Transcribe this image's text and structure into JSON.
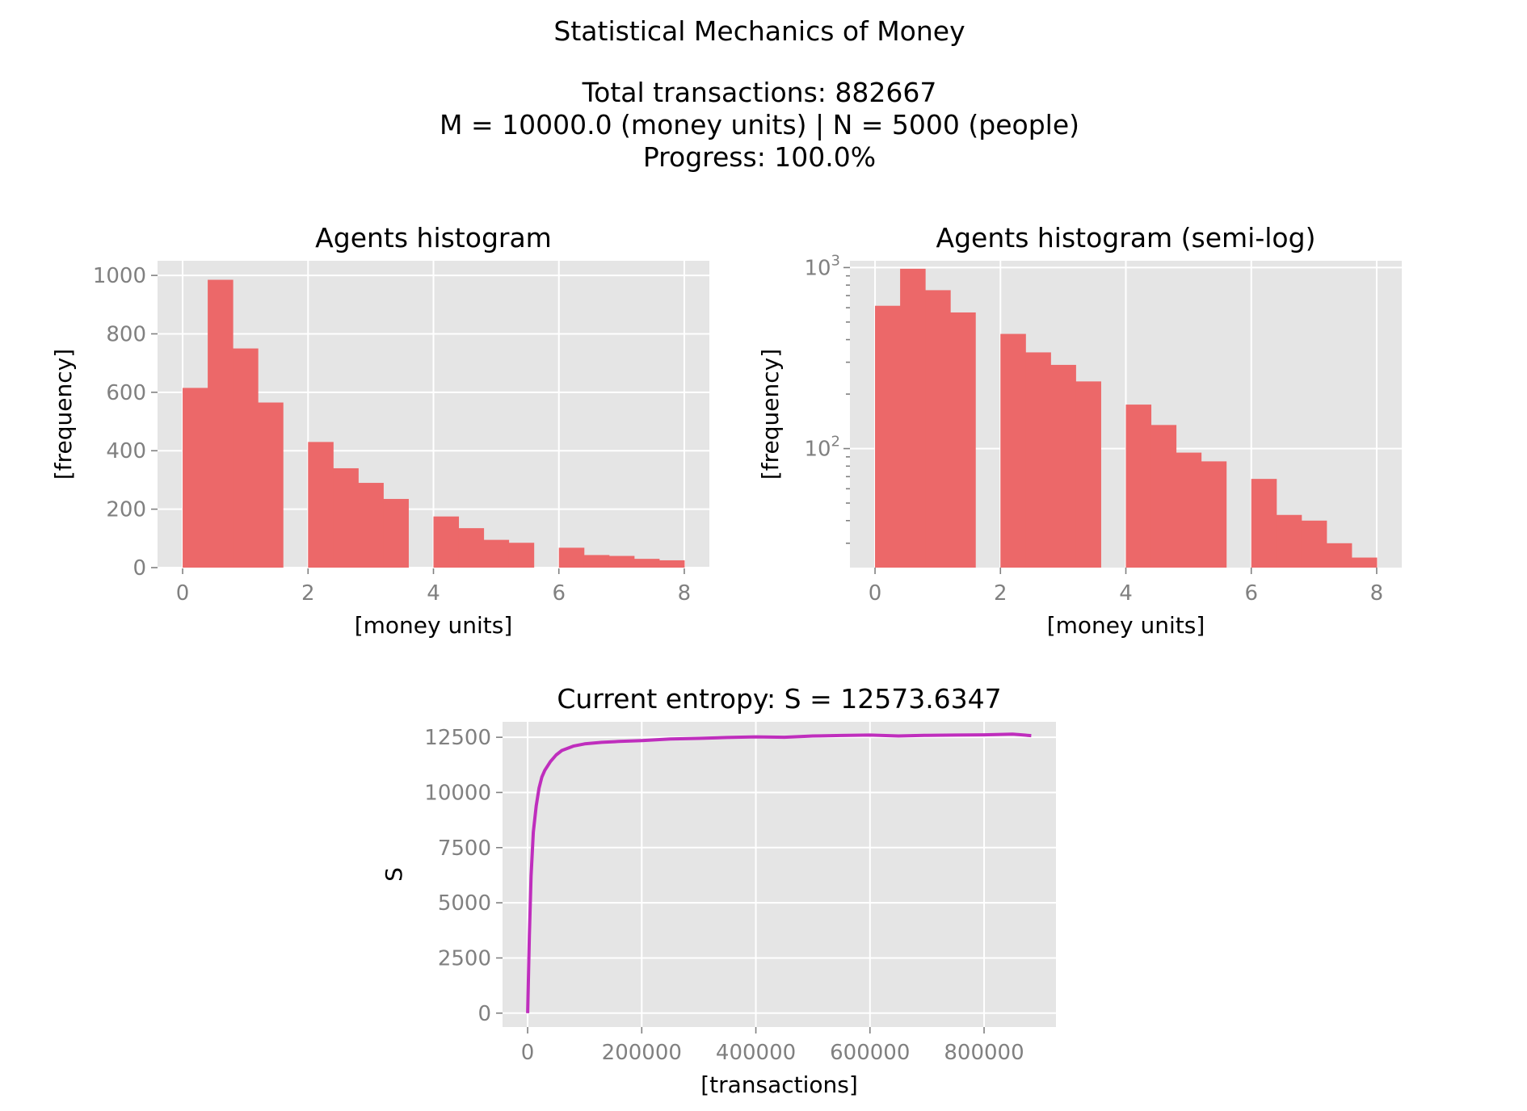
{
  "figure": {
    "title_lines": [
      "Statistical Mechanics of Money",
      "",
      "Total transactions: 882667",
      "M = 10000.0 (money units)   |    N = 5000 (people)",
      "Progress: 100.0%"
    ]
  },
  "chart_data": [
    {
      "type": "bar",
      "title": "Agents histogram",
      "xlabel": "[money units]",
      "ylabel": "[frequency]",
      "xlim": [
        -0.4,
        8.4
      ],
      "ylim": [
        0,
        1050
      ],
      "xticks": [
        0,
        2,
        4,
        6,
        8
      ],
      "xtick_labels": [
        "0",
        "2",
        "4",
        "6",
        "8"
      ],
      "yticks": [
        0,
        200,
        400,
        600,
        800,
        1000
      ],
      "ytick_labels": [
        "0",
        "200",
        "400",
        "600",
        "800",
        "1000"
      ],
      "grid": true,
      "color": "#ec6869",
      "bin_edges": [
        0,
        0.4,
        0.8,
        1.2,
        1.6,
        2.0,
        2.4,
        2.8,
        3.2,
        3.6,
        4.0,
        4.4,
        4.8,
        5.2,
        5.6,
        6.0,
        6.4,
        6.8,
        7.2,
        7.6,
        8.0
      ],
      "values": [
        615,
        985,
        750,
        565,
        0,
        430,
        340,
        290,
        235,
        0,
        175,
        135,
        95,
        85,
        0,
        68,
        43,
        40,
        30,
        25
      ]
    },
    {
      "type": "bar",
      "title": "Agents histogram (semi-log)",
      "xlabel": "[money units]",
      "ylabel": "[frequency]",
      "yscale": "log",
      "xlim": [
        -0.4,
        8.4
      ],
      "ylim": [
        22,
        1090
      ],
      "xticks": [
        0,
        2,
        4,
        6,
        8
      ],
      "xtick_labels": [
        "0",
        "2",
        "4",
        "6",
        "8"
      ],
      "yticks_major": [
        100,
        1000
      ],
      "ytick_labels": [
        {
          "base": "10",
          "exp": "2"
        },
        {
          "base": "10",
          "exp": "3"
        }
      ],
      "yticks_minor": [
        30,
        40,
        50,
        60,
        70,
        80,
        90,
        200,
        300,
        400,
        500,
        600,
        700,
        800,
        900
      ],
      "grid": true,
      "color": "#ec6869",
      "bin_edges": [
        0,
        0.4,
        0.8,
        1.2,
        1.6,
        2.0,
        2.4,
        2.8,
        3.2,
        3.6,
        4.0,
        4.4,
        4.8,
        5.2,
        5.6,
        6.0,
        6.4,
        6.8,
        7.2,
        7.6,
        8.0
      ],
      "values": [
        615,
        985,
        750,
        565,
        0,
        430,
        340,
        290,
        235,
        0,
        175,
        135,
        95,
        85,
        0,
        68,
        43,
        40,
        30,
        25
      ]
    },
    {
      "type": "line",
      "title": "Current entropy: S = 12573.6347",
      "xlabel": "[transactions]",
      "ylabel": "S",
      "xlim": [
        -44000,
        926000
      ],
      "ylim": [
        -630,
        13200
      ],
      "xticks": [
        0,
        200000,
        400000,
        600000,
        800000
      ],
      "xtick_labels": [
        "0",
        "200000",
        "400000",
        "600000",
        "800000"
      ],
      "yticks": [
        0,
        2500,
        5000,
        7500,
        10000,
        12500
      ],
      "ytick_labels": [
        "0",
        "2500",
        "5000",
        "7500",
        "10000",
        "12500"
      ],
      "grid": true,
      "color": "#bf2ebd",
      "x": [
        0,
        3000,
        6000,
        10000,
        15000,
        20000,
        25000,
        30000,
        40000,
        50000,
        60000,
        80000,
        100000,
        130000,
        160000,
        200000,
        250000,
        300000,
        350000,
        400000,
        450000,
        500000,
        550000,
        600000,
        650000,
        700000,
        750000,
        800000,
        850000,
        882667
      ],
      "y": [
        0,
        3500,
        6200,
        8200,
        9400,
        10200,
        10700,
        11000,
        11400,
        11700,
        11900,
        12100,
        12200,
        12270,
        12310,
        12350,
        12420,
        12450,
        12490,
        12520,
        12500,
        12560,
        12580,
        12600,
        12560,
        12590,
        12600,
        12610,
        12640,
        12573.6347
      ]
    }
  ]
}
